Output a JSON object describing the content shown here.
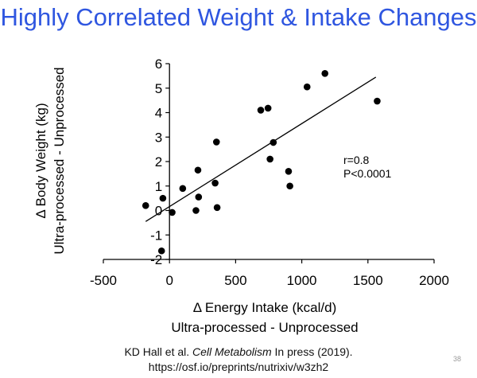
{
  "slide": {
    "title": "Highly Correlated Weight & Intake Changes",
    "citation_authors": "KD Hall et al. ",
    "citation_journal": "Cell Metabolism",
    "citation_status": " In press (2019).",
    "citation_url": "https://osf.io/preprints/nutrixiv/w3zh2",
    "slide_number": "38",
    "title_color": "#2f56e0"
  },
  "chart_data": {
    "type": "scatter",
    "xlabel": "Δ Energy Intake (kcal/d)",
    "xlabel2": "Ultra-processed - Unprocessed",
    "ylabel": "Δ Body Weight (kg)",
    "ylabel2": "Ultra-processed - Unprocessed",
    "xlim": [
      -500,
      2000
    ],
    "ylim": [
      -2,
      6
    ],
    "xticks": [
      -500,
      0,
      500,
      1000,
      1500,
      2000
    ],
    "yticks": [
      -2,
      -1,
      0,
      1,
      2,
      3,
      4,
      5,
      6
    ],
    "grid": false,
    "points": [
      {
        "x": -180,
        "y": 0.2
      },
      {
        "x": -60,
        "y": -1.65
      },
      {
        "x": -50,
        "y": 0.5
      },
      {
        "x": 20,
        "y": -0.08
      },
      {
        "x": 100,
        "y": 0.9
      },
      {
        "x": 200,
        "y": 0.0
      },
      {
        "x": 215,
        "y": 1.65
      },
      {
        "x": 220,
        "y": 0.55
      },
      {
        "x": 345,
        "y": 1.12
      },
      {
        "x": 355,
        "y": 2.8
      },
      {
        "x": 360,
        "y": 0.12
      },
      {
        "x": 690,
        "y": 4.1
      },
      {
        "x": 745,
        "y": 4.18
      },
      {
        "x": 760,
        "y": 2.1
      },
      {
        "x": 785,
        "y": 2.78
      },
      {
        "x": 900,
        "y": 1.6
      },
      {
        "x": 910,
        "y": 1.0
      },
      {
        "x": 1040,
        "y": 5.05
      },
      {
        "x": 1175,
        "y": 5.6
      },
      {
        "x": 1570,
        "y": 4.47
      }
    ],
    "trendline": {
      "x": [
        -180,
        1560
      ],
      "y": [
        -0.45,
        5.45
      ]
    },
    "annotations": [
      "r=0.8",
      "P<0.0001"
    ],
    "marker_color": "#000000"
  }
}
